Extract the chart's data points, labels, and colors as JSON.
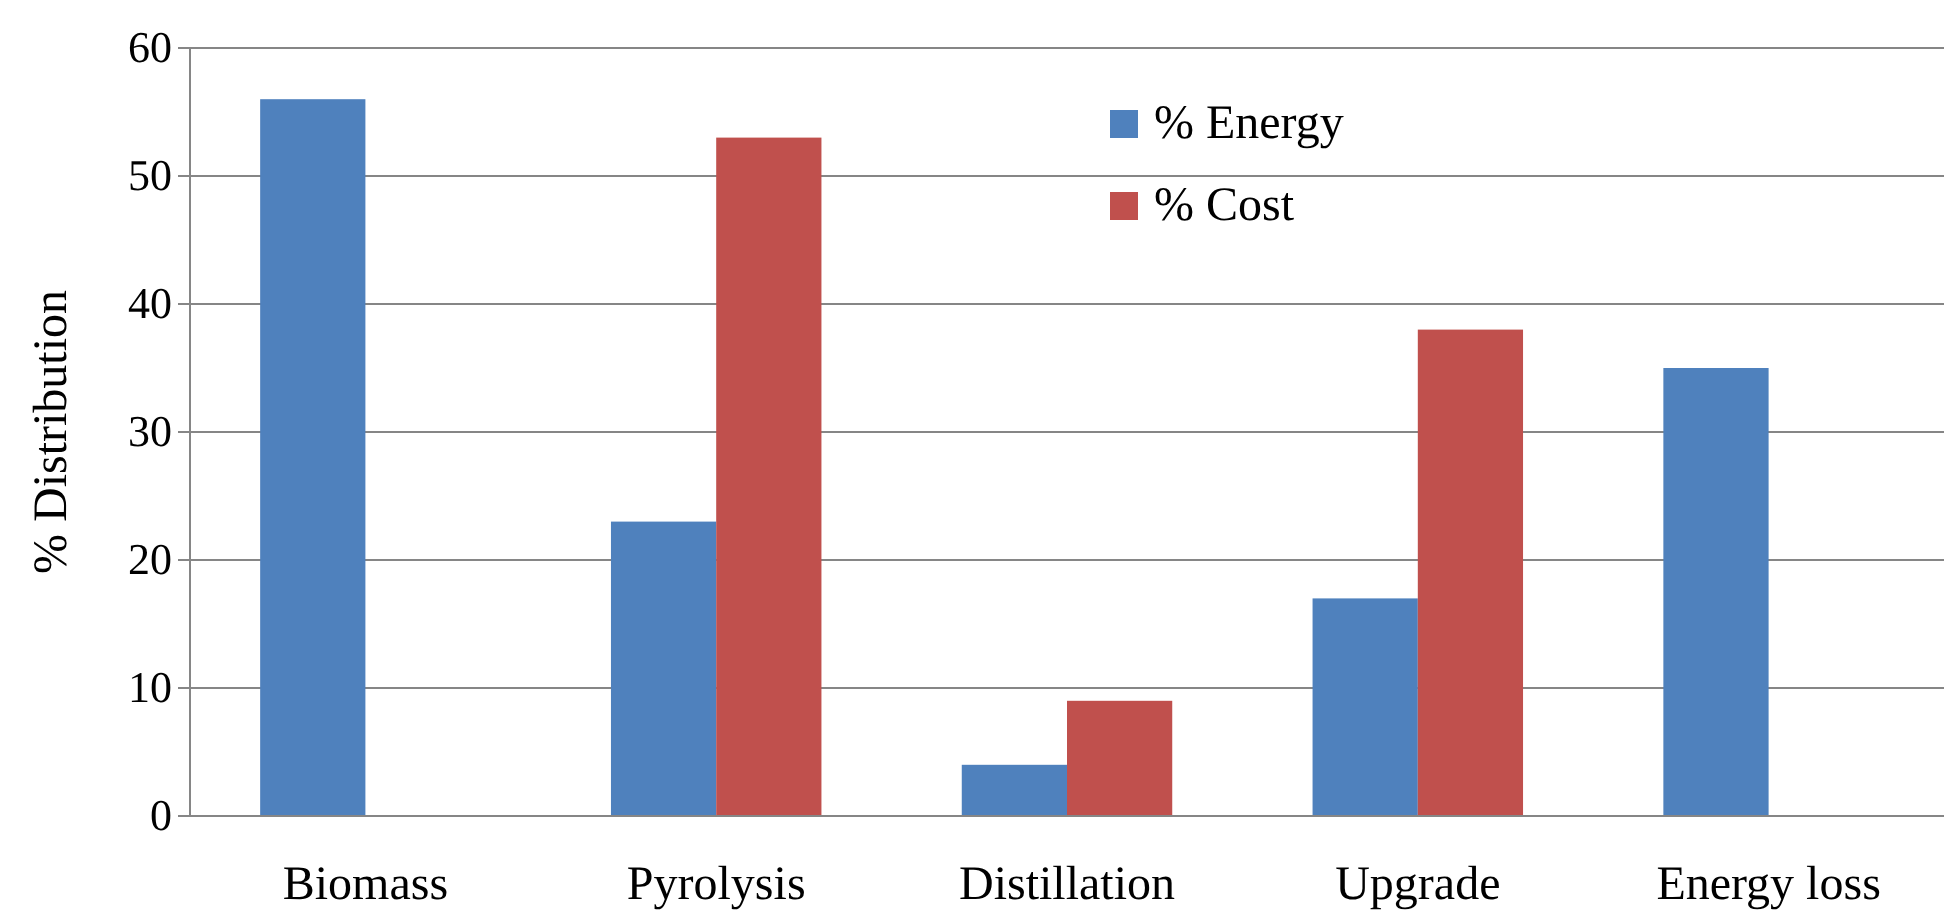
{
  "chart_data": {
    "type": "bar",
    "ylabel": "% Distribution",
    "categories": [
      "Biomass",
      "Pyrolysis",
      "Distillation",
      "Upgrade",
      "Energy loss"
    ],
    "series": [
      {
        "name": "% Energy",
        "color": "#4f81bd",
        "values": [
          56,
          23,
          4,
          17,
          35
        ]
      },
      {
        "name": "% Cost",
        "color": "#c0504d",
        "values": [
          null,
          53,
          9,
          38,
          null
        ]
      }
    ],
    "ylim": [
      0,
      60
    ],
    "yticks": [
      0,
      10,
      20,
      30,
      40,
      50,
      60
    ],
    "grid": "y",
    "legend": "top right"
  }
}
